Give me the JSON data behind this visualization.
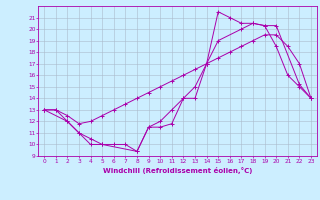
{
  "title": "",
  "xlabel": "Windchill (Refroidissement éolien,°C)",
  "background_color": "#cceeff",
  "grid_color": "#aabbcc",
  "line_color": "#aa00aa",
  "xlim": [
    -0.5,
    23.5
  ],
  "ylim": [
    9,
    22
  ],
  "xticks": [
    0,
    1,
    2,
    3,
    4,
    5,
    6,
    7,
    8,
    9,
    10,
    11,
    12,
    13,
    14,
    15,
    16,
    17,
    18,
    19,
    20,
    21,
    22,
    23
  ],
  "yticks": [
    9,
    10,
    11,
    12,
    13,
    14,
    15,
    16,
    17,
    18,
    19,
    20,
    21
  ],
  "line1_x": [
    0,
    1,
    2,
    3,
    4,
    5,
    6,
    7,
    8,
    9,
    10,
    11,
    12,
    13,
    14,
    15,
    16,
    17,
    18,
    19,
    20,
    21,
    22,
    23
  ],
  "line1_y": [
    13,
    13,
    12,
    11,
    10.5,
    10,
    10,
    10,
    9.4,
    11.5,
    11.5,
    11.8,
    14,
    14,
    17,
    21.5,
    21,
    20.5,
    20.5,
    20.3,
    18.5,
    16,
    15,
    14
  ],
  "line2_x": [
    0,
    2,
    3,
    4,
    5,
    8,
    9,
    10,
    11,
    12,
    13,
    14,
    15,
    17,
    18,
    19,
    20,
    22,
    23
  ],
  "line2_y": [
    13,
    12,
    11,
    10,
    10,
    9.4,
    11.5,
    12,
    13,
    14,
    15,
    17,
    19,
    20,
    20.5,
    20.3,
    20.3,
    15.2,
    14
  ],
  "line3_x": [
    0,
    1,
    2,
    3,
    4,
    5,
    6,
    7,
    8,
    9,
    10,
    11,
    12,
    13,
    14,
    15,
    16,
    17,
    18,
    19,
    20,
    21,
    22,
    23
  ],
  "line3_y": [
    13,
    13,
    12.5,
    11.8,
    12,
    12.5,
    13,
    13.5,
    14,
    14.5,
    15,
    15.5,
    16,
    16.5,
    17,
    17.5,
    18,
    18.5,
    19,
    19.5,
    19.5,
    18.5,
    17,
    14
  ]
}
